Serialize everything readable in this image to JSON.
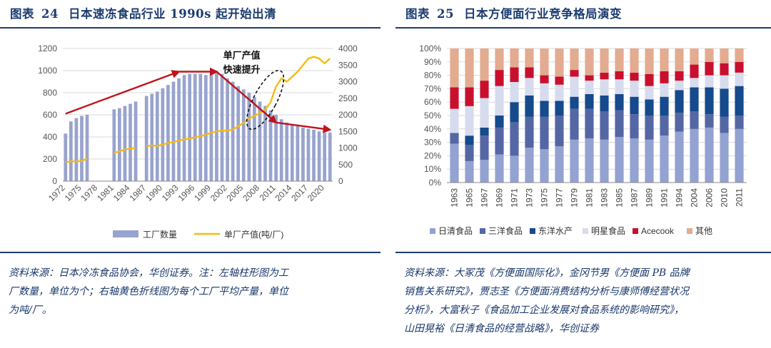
{
  "left": {
    "title_prefix": "图表",
    "title_number": "24",
    "title_text": "日本速冻食品行业 1990s 起开始出清",
    "source": [
      "资料来源：日本冷冻食品协会，华创证券。注：左轴柱形图为工",
      "厂数量，单位为个；右轴黄色折线图为每个工厂平均产量，单位",
      "为吨/厂。"
    ],
    "annotation": [
      "单厂产值",
      "快速提升"
    ]
  },
  "right": {
    "title_prefix": "图表",
    "title_number": "25",
    "title_text": "日本方便面行业竞争格局演变",
    "source": [
      "资料来源：大冢茂《方便面国际化》，金冈节男《方便面 PB 品牌",
      "销售关系研究》，贾志圣《方便面消费结构分析与康师傅经营状况",
      "分析》，大富秋子《食品加工企业发展对食品系统的影响研究》，",
      "山田晃裕《日清食品的经营战略》，华创证券"
    ]
  },
  "colors": {
    "bar_blue": "#98a3cf",
    "line_yellow": "#f5bb0f",
    "arrow_red": "#c0141c",
    "nissin": "#93a2d0",
    "sanyo": "#5467a4",
    "toyo": "#154a8c",
    "myojo": "#d7dbee",
    "acecook": "#c8102e",
    "other": "#e3ab8f",
    "grid": "#d9d9d9"
  },
  "chart_data": [
    {
      "type": "bar",
      "subtype": "bar+line dual axis",
      "title": "日本速冻食品行业 1990s 起开始出清",
      "years": [
        1972,
        1973,
        1974,
        1975,
        1976,
        1977,
        1978,
        1979,
        1980,
        1981,
        1982,
        1983,
        1984,
        1985,
        1986,
        1987,
        1988,
        1989,
        1990,
        1991,
        1992,
        1993,
        1994,
        1995,
        1996,
        1997,
        1998,
        1999,
        2000,
        2001,
        2002,
        2003,
        2004,
        2005,
        2006,
        2007,
        2008,
        2009,
        2010,
        2011,
        2012,
        2013,
        2014,
        2015,
        2016,
        2017,
        2018,
        2019,
        2020,
        2021
      ],
      "x_tick_labels": [
        "1972",
        "1975",
        "1978",
        "1981",
        "1984",
        "1987",
        "1990",
        "1993",
        "1996",
        "1999",
        "2002",
        "2005",
        "2008",
        "2011",
        "2014",
        "2017",
        "2020"
      ],
      "series": [
        {
          "name": "工厂数量",
          "axis": "left",
          "type": "bar",
          "values": [
            430,
            540,
            570,
            590,
            600,
            null,
            null,
            null,
            null,
            650,
            660,
            680,
            700,
            720,
            null,
            770,
            790,
            810,
            840,
            870,
            900,
            930,
            960,
            970,
            970,
            970,
            960,
            960,
            980,
            970,
            930,
            900,
            860,
            830,
            800,
            760,
            720,
            680,
            640,
            600,
            560,
            530,
            510,
            500,
            485,
            475,
            465,
            450,
            440,
            440
          ]
        },
        {
          "name": "单厂产值(吨/厂)",
          "axis": "right",
          "type": "line",
          "values": [
            570,
            600,
            590,
            610,
            680,
            null,
            null,
            null,
            null,
            850,
            900,
            950,
            980,
            1000,
            null,
            1050,
            1080,
            1060,
            1100,
            1150,
            1180,
            1220,
            1260,
            1280,
            1320,
            1360,
            1400,
            1460,
            1500,
            1520,
            1520,
            1560,
            1650,
            1760,
            1880,
            1970,
            2050,
            2150,
            2380,
            2850,
            3100,
            3000,
            3150,
            3300,
            3500,
            3700,
            3750,
            3700,
            3550,
            3700
          ]
        }
      ],
      "ylim_left": [
        0,
        1200
      ],
      "yticks_left": [
        0,
        200,
        400,
        600,
        800,
        1000,
        1200
      ],
      "ylim_right": [
        0,
        4000
      ],
      "yticks_right": [
        0,
        500,
        1000,
        1500,
        2000,
        2500,
        3000,
        3500,
        4000
      ],
      "legend": [
        "工厂数量",
        "单厂产值(吨/厂)"
      ],
      "legend_position": "bottom"
    },
    {
      "type": "bar",
      "subtype": "100% stacked",
      "title": "日本方便面行业竞争格局演变",
      "categories": [
        "1963",
        "1965",
        "1967",
        "1969",
        "1971",
        "1973",
        "1975",
        "1977",
        "1979",
        "1981",
        "1983",
        "1985",
        "1987",
        "1989",
        "1991",
        "1994",
        "2004",
        "2006",
        "2010",
        "2011"
      ],
      "x_tick_labels": [
        "1963",
        "1965",
        "1967",
        "1969",
        "1971",
        "1973",
        "1975",
        "1977",
        "1979",
        "1981",
        "1983",
        "1985",
        "1987",
        "1989",
        "1991",
        "1994",
        "2004",
        "2006",
        "2010",
        "2011"
      ],
      "series": [
        {
          "name": "日清食品",
          "values": [
            29,
            16,
            17,
            21,
            20,
            26,
            25,
            27,
            32,
            33,
            32,
            34,
            33,
            32,
            35,
            38,
            40,
            41,
            37,
            40
          ]
        },
        {
          "name": "三洋食品",
          "values": [
            8,
            12,
            18,
            20,
            25,
            23,
            24,
            23,
            23,
            22,
            21,
            20,
            18,
            18,
            15,
            14,
            13,
            10,
            12,
            10
          ]
        },
        {
          "name": "东洋水产",
          "values": [
            0,
            7,
            6,
            9,
            15,
            16,
            12,
            11,
            9,
            11,
            12,
            12,
            13,
            12,
            14,
            17,
            18,
            20,
            21,
            22
          ]
        },
        {
          "name": "明星食品",
          "values": [
            18,
            22,
            22,
            22,
            15,
            13,
            13,
            12,
            15,
            10,
            12,
            11,
            12,
            10,
            10,
            7,
            7,
            9,
            10,
            10
          ]
        },
        {
          "name": "Acecook",
          "values": [
            16,
            14,
            13,
            12,
            11,
            8,
            6,
            6,
            5,
            4,
            5,
            6,
            6,
            9,
            9,
            7,
            10,
            10,
            9,
            8
          ]
        },
        {
          "name": "其他",
          "values": [
            29,
            29,
            24,
            16,
            14,
            14,
            20,
            21,
            16,
            20,
            18,
            17,
            18,
            19,
            17,
            17,
            12,
            10,
            11,
            10
          ]
        }
      ],
      "ylim": [
        0,
        100
      ],
      "yticks": [
        "0%",
        "10%",
        "20%",
        "30%",
        "40%",
        "50%",
        "60%",
        "70%",
        "80%",
        "90%",
        "100%"
      ],
      "legend_position": "bottom"
    }
  ]
}
